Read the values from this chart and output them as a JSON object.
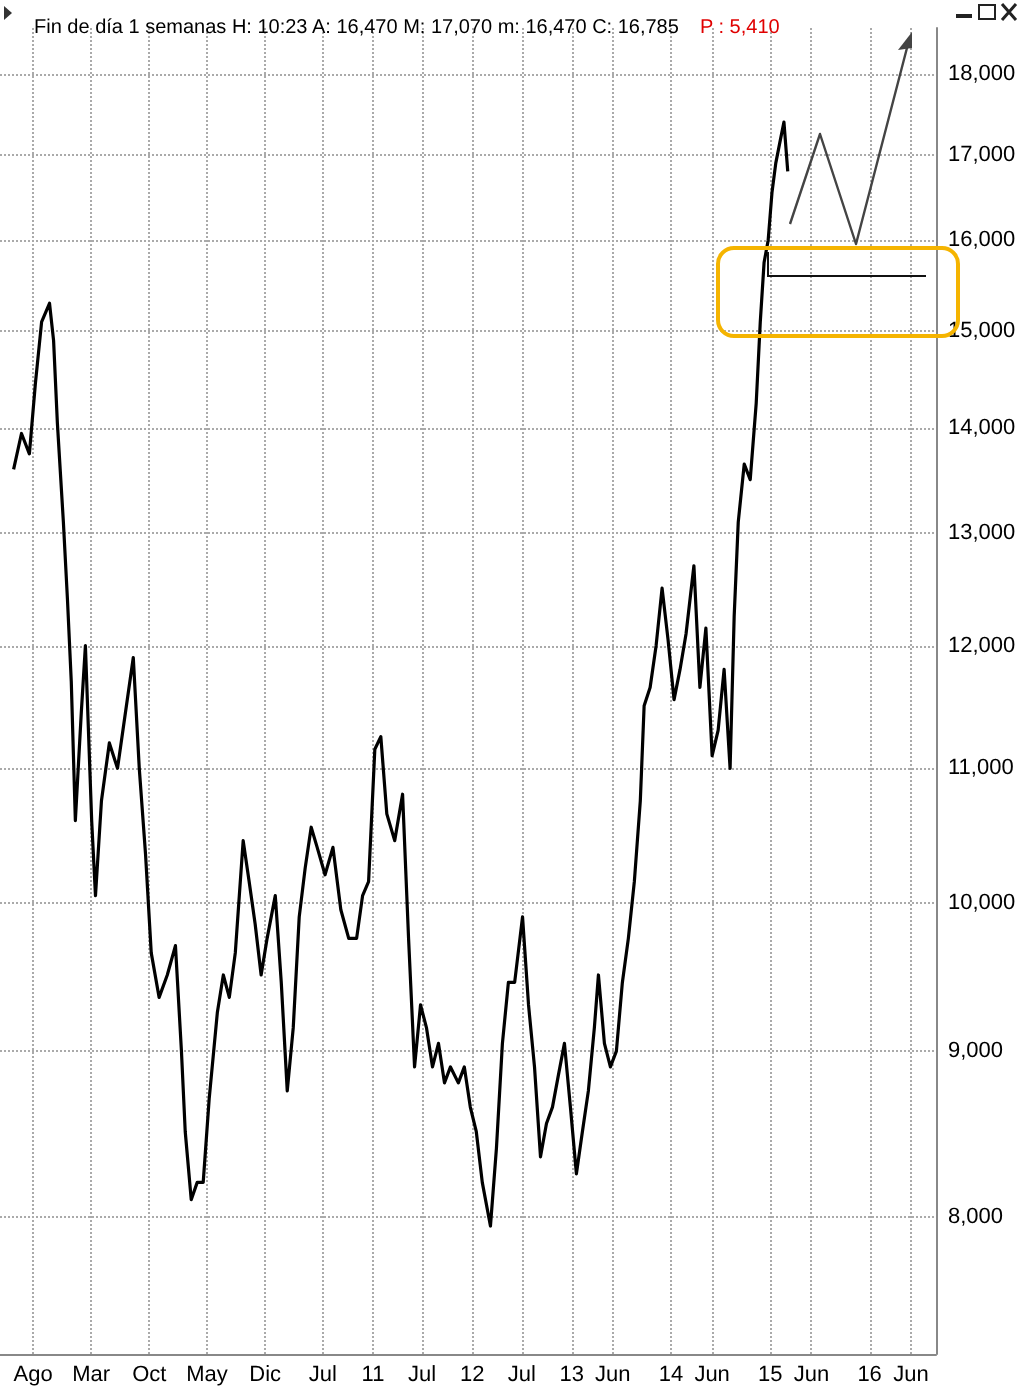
{
  "chart_data": {
    "type": "line",
    "title": "Fin de día 1 semanas H: 10:23 A: 16,470 M: 17,070 m: 16,470 C: 16,785",
    "subtitle": "P : 5,410",
    "log": "y",
    "grid": true,
    "marker": "none",
    "xlim": [
      "2007-04",
      "2016-09"
    ],
    "xticks": [
      {
        "value": "2007-08",
        "label": "Ago"
      },
      {
        "value": "2008-03",
        "label": "Mar"
      },
      {
        "value": "2008-10",
        "label": "Oct"
      },
      {
        "value": "2009-05",
        "label": "May"
      },
      {
        "value": "2009-12",
        "label": "Dic"
      },
      {
        "value": "2010-07",
        "label": "Jul"
      },
      {
        "value": "2011-01",
        "label": "11"
      },
      {
        "value": "2011-07",
        "label": "Jul"
      },
      {
        "value": "2012-01",
        "label": "12"
      },
      {
        "value": "2012-07",
        "label": "Jul"
      },
      {
        "value": "2013-01",
        "label": "13"
      },
      {
        "value": "2013-06",
        "label": "Jun"
      },
      {
        "value": "2014-01",
        "label": "14"
      },
      {
        "value": "2014-06",
        "label": "Jun"
      },
      {
        "value": "2015-01",
        "label": "15"
      },
      {
        "value": "2015-06",
        "label": "Jun"
      },
      {
        "value": "2016-01",
        "label": "16"
      },
      {
        "value": "2016-06",
        "label": "Jun"
      }
    ],
    "ylim": [
      7260,
      18600
    ],
    "yticks": [
      {
        "value": 8000,
        "label": "8,000"
      },
      {
        "value": 9000,
        "label": "9,000"
      },
      {
        "value": 10000,
        "label": "10,000"
      },
      {
        "value": 11000,
        "label": "11,000"
      },
      {
        "value": 12000,
        "label": "12,000"
      },
      {
        "value": 13000,
        "label": "13,000"
      },
      {
        "value": 14000,
        "label": "14,000"
      },
      {
        "value": 15000,
        "label": "15,000"
      },
      {
        "value": 16000,
        "label": "16,000"
      },
      {
        "value": 17000,
        "label": "17,000"
      },
      {
        "value": 18000,
        "label": "18,000"
      }
    ],
    "series": [
      {
        "color": "#000000",
        "x": [
          "2007-05-21",
          "2007-06-19",
          "2007-07-18",
          "2007-08-09",
          "2007-09-01",
          "2007-09-30",
          "2007-10-15",
          "2007-10-29",
          "2007-11-20",
          "2007-12-05",
          "2007-12-19",
          "2008-01-03",
          "2008-01-25",
          "2008-02-09",
          "2008-03-03",
          "2008-03-17",
          "2008-04-08",
          "2008-05-07",
          "2008-06-06",
          "2008-07-12",
          "2008-08-03",
          "2008-08-25",
          "2008-09-17",
          "2008-10-08",
          "2008-11-06",
          "2008-12-06",
          "2009-01-05",
          "2009-01-27",
          "2009-02-10",
          "2009-03-04",
          "2009-03-26",
          "2009-04-17",
          "2009-05-09",
          "2009-06-08",
          "2009-06-30",
          "2009-07-22",
          "2009-08-13",
          "2009-09-11",
          "2009-10-03",
          "2009-10-25",
          "2009-11-16",
          "2009-12-08",
          "2010-01-07",
          "2010-01-29",
          "2010-02-20",
          "2010-03-14",
          "2010-04-05",
          "2010-04-27",
          "2010-05-19",
          "2010-06-10",
          "2010-07-09",
          "2010-08-07",
          "2010-09-05",
          "2010-10-04",
          "2010-11-02",
          "2010-11-24",
          "2010-12-16",
          "2011-01-08",
          "2011-01-30",
          "2011-02-21",
          "2011-03-22",
          "2011-04-20",
          "2011-05-12",
          "2011-06-03",
          "2011-06-25",
          "2011-07-17",
          "2011-08-08",
          "2011-08-30",
          "2011-09-21",
          "2011-10-13",
          "2011-11-11",
          "2011-12-03",
          "2011-12-25",
          "2012-01-16",
          "2012-02-07",
          "2012-03-08",
          "2012-03-30",
          "2012-04-21",
          "2012-05-13",
          "2012-06-05",
          "2012-07-04",
          "2012-07-26",
          "2012-08-17",
          "2012-09-08",
          "2012-09-30",
          "2012-10-22",
          "2012-11-13",
          "2012-12-05",
          "2012-12-27",
          "2013-01-18",
          "2013-02-09",
          "2013-03-03",
          "2013-03-25",
          "2013-04-09",
          "2013-05-01",
          "2013-05-23",
          "2013-06-14",
          "2013-07-06",
          "2013-07-28",
          "2013-08-19",
          "2013-09-10",
          "2013-09-24",
          "2013-10-16",
          "2013-11-07",
          "2013-11-29",
          "2013-12-21",
          "2014-01-12",
          "2014-02-03",
          "2014-02-25",
          "2014-03-26",
          "2014-04-17",
          "2014-05-09",
          "2014-06-01",
          "2014-06-23",
          "2014-07-15",
          "2014-08-06",
          "2014-08-21",
          "2014-09-05",
          "2014-09-27",
          "2014-10-19",
          "2014-11-10",
          "2014-11-25",
          "2014-12-09",
          "2014-12-24",
          "2015-01-07",
          "2015-01-21",
          "2015-02-05",
          "2015-02-20",
          "2015-03-06"
        ],
        "values": [
          13600,
          13950,
          13750,
          14450,
          15100,
          15300,
          14900,
          14050,
          13100,
          12400,
          11700,
          10600,
          11450,
          12000,
          10600,
          10050,
          10750,
          11200,
          11000,
          11550,
          11900,
          11000,
          10350,
          9650,
          9350,
          9500,
          9700,
          9000,
          8500,
          8100,
          8200,
          8200,
          8700,
          9250,
          9500,
          9350,
          9650,
          10450,
          10150,
          9850,
          9500,
          9750,
          10050,
          9450,
          8750,
          9150,
          9900,
          10250,
          10550,
          10400,
          10200,
          10400,
          9950,
          9750,
          9750,
          10050,
          10150,
          11150,
          11250,
          10650,
          10450,
          10800,
          9750,
          8900,
          9300,
          9150,
          8900,
          9050,
          8800,
          8900,
          8800,
          8900,
          8650,
          8500,
          8200,
          7950,
          8400,
          9050,
          9450,
          9450,
          9900,
          9300,
          8900,
          8350,
          8550,
          8650,
          8850,
          9050,
          8650,
          8250,
          8500,
          8750,
          9150,
          9500,
          9050,
          8900,
          9000,
          9450,
          9750,
          10150,
          10750,
          11500,
          11650,
          12000,
          12500,
          12050,
          11550,
          11800,
          12100,
          12700,
          11650,
          12150,
          11100,
          11300,
          11800,
          11000,
          12250,
          13100,
          13650,
          13500,
          14250,
          15100,
          15750,
          16000,
          16550,
          16900,
          17150,
          17400,
          16800
        ]
      }
    ]
  }
}
